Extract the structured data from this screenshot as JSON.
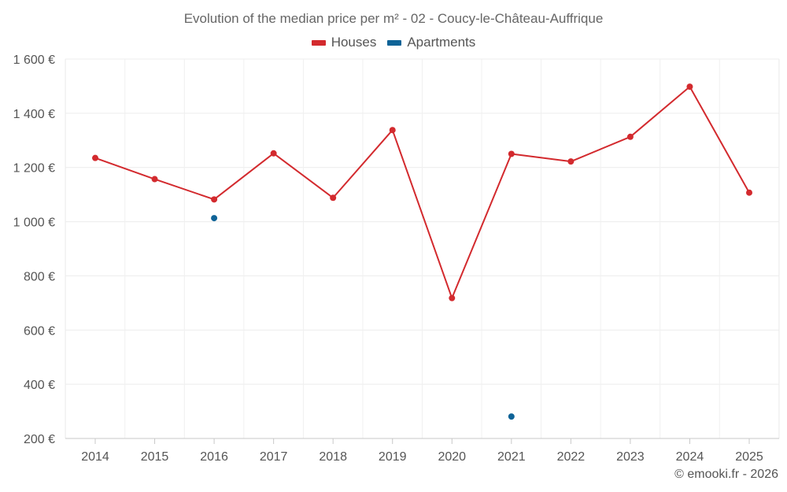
{
  "chart_data": {
    "type": "line",
    "title": "Evolution of the median price per m² - 02 - Coucy-le-Château-Auffrique",
    "xlabel": "",
    "ylabel": "",
    "x": [
      "2014",
      "2015",
      "2016",
      "2017",
      "2018",
      "2019",
      "2020",
      "2021",
      "2022",
      "2023",
      "2024",
      "2025"
    ],
    "y_ticks": [
      "200 €",
      "400 €",
      "600 €",
      "800 €",
      "1 000 €",
      "1 200 €",
      "1 400 €",
      "1 600 €"
    ],
    "y_tick_values": [
      200,
      400,
      600,
      800,
      1000,
      1200,
      1400,
      1600
    ],
    "ylim": [
      200,
      1600
    ],
    "grid": true,
    "legend_position": "top-center",
    "series": [
      {
        "name": "Houses",
        "color": "#d32a2e",
        "values": [
          1235,
          1157,
          1082,
          1252,
          1088,
          1338,
          718,
          1250,
          1222,
          1313,
          1498,
          1107
        ]
      },
      {
        "name": "Apartments",
        "color": "#0e6397",
        "values": [
          null,
          null,
          1013,
          null,
          null,
          null,
          null,
          281,
          null,
          null,
          null,
          null
        ]
      }
    ]
  },
  "credit": "© emooki.fr - 2026"
}
